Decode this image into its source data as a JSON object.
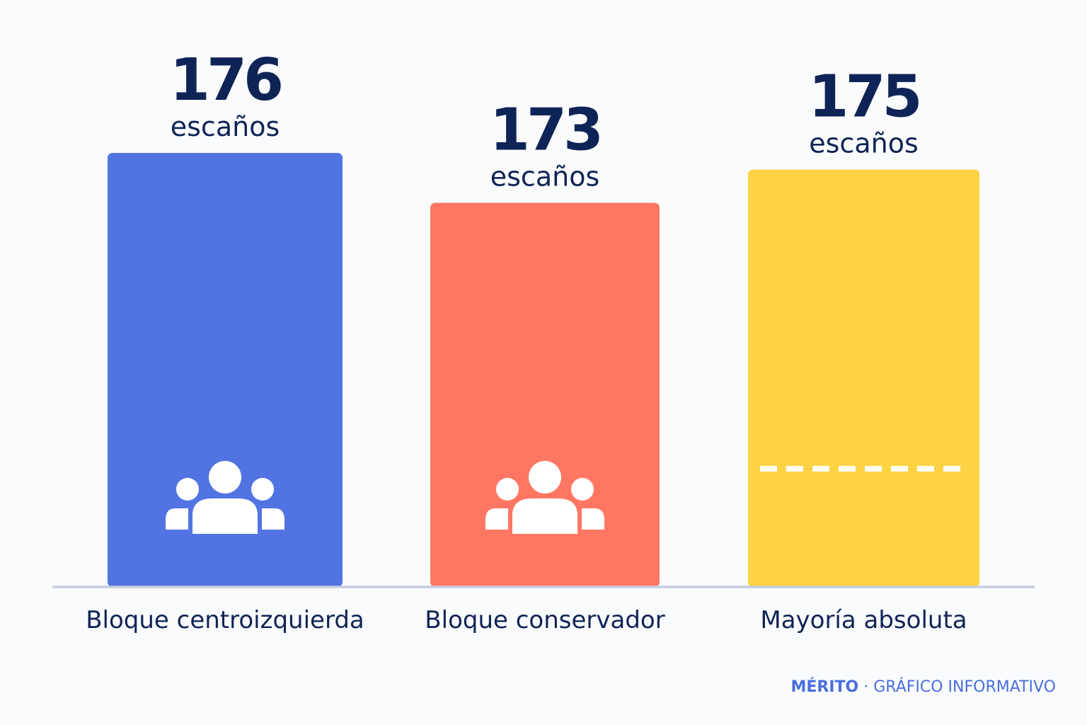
{
  "chart_data": {
    "type": "bar",
    "categories": [
      "Bloque centroizquierda",
      "Bloque conservador",
      "Mayoría absoluta"
    ],
    "values": [
      176,
      173,
      175
    ],
    "data_labels": [
      "176",
      "173",
      "175"
    ],
    "value_unit": "escaños",
    "title": "",
    "xlabel": "",
    "ylabel": "",
    "ylim": [
      0,
      176
    ],
    "grid": false,
    "legend": "none",
    "bar_colors": [
      "#5274e2",
      "#ff7763",
      "#fdd243"
    ],
    "bar_icons": [
      "group-icon",
      "group-icon",
      "dashed-line-icon"
    ]
  },
  "branding": {
    "name": "MÉRITO",
    "separator": "·",
    "tagline": "GRÁFICO INFORMATIVO"
  },
  "colors": {
    "text": "#0f2456",
    "axis": "#c5cde0",
    "brand": "#4a6ee0",
    "icon": "#ffffff"
  }
}
